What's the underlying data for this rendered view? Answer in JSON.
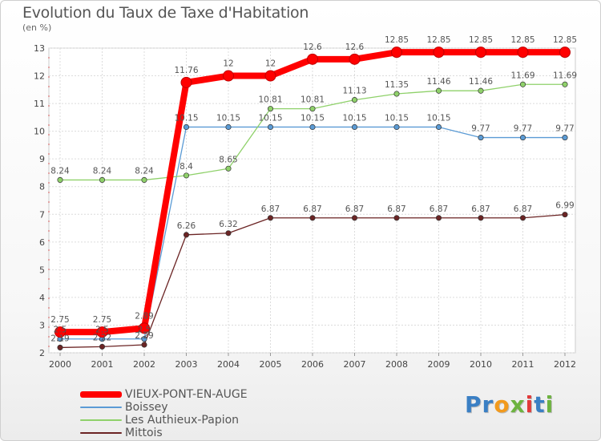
{
  "title": "Evolution du Taux de Taxe d'Habitation",
  "unit_label": "(en %)",
  "logo": {
    "text": "Proxiti",
    "letters": [
      {
        "ch": "P",
        "color": "#3a7fc4"
      },
      {
        "ch": "r",
        "color": "#3a7fc4"
      },
      {
        "ch": "o",
        "color": "#f29a1d"
      },
      {
        "ch": "x",
        "color": "#6db33f"
      },
      {
        "ch": "i",
        "color": "#e23a3a"
      },
      {
        "ch": "t",
        "color": "#3a7fc4"
      },
      {
        "ch": "i",
        "color": "#6db33f"
      }
    ]
  },
  "chart_data": {
    "type": "line",
    "title": "Evolution du Taux de Taxe d'Habitation",
    "ylabel": "(en %)",
    "xlabel": "",
    "x": [
      "2000",
      "2001",
      "2002",
      "2003",
      "2004",
      "2005",
      "2006",
      "2007",
      "2008",
      "2009",
      "2010",
      "2011",
      "2012"
    ],
    "ylim": [
      2,
      13
    ],
    "yticks": [
      2,
      3,
      4,
      5,
      6,
      7,
      8,
      9,
      10,
      11,
      12,
      13
    ],
    "grid": true,
    "legend_position": "bottom-left",
    "series": [
      {
        "name": "VIEUX-PONT-EN-AUGE",
        "color": "#ff0000",
        "emphasis": true,
        "values": [
          2.75,
          2.75,
          2.89,
          11.76,
          12,
          12,
          12.6,
          12.6,
          12.85,
          12.85,
          12.85,
          12.85,
          12.85
        ],
        "labels": [
          "2.75",
          "2.75",
          "2.89",
          "11.76",
          "12",
          "12",
          "12.6",
          "12.6",
          "12.85",
          "12.85",
          "12.85",
          "12.85",
          "12.85"
        ]
      },
      {
        "name": "Boissey",
        "color": "#5b9bd5",
        "emphasis": false,
        "values": [
          2.5,
          2.5,
          2.5,
          10.15,
          10.15,
          10.15,
          10.15,
          10.15,
          10.15,
          10.15,
          9.77,
          9.77,
          9.77
        ],
        "labels": [
          "2.5",
          "2.5",
          "2.5",
          "10.15",
          "10.15",
          "10.15",
          "10.15",
          "10.15",
          "10.15",
          "10.15",
          "9.77",
          "9.77",
          "9.77"
        ]
      },
      {
        "name": "Les Authieux-Papion",
        "color": "#8fd16a",
        "emphasis": false,
        "values": [
          8.24,
          8.24,
          8.24,
          8.4,
          8.65,
          10.81,
          10.81,
          11.13,
          11.35,
          11.46,
          11.46,
          11.69,
          11.69
        ],
        "labels": [
          "8.24",
          "8.24",
          "8.24",
          "8.4",
          "8.65",
          "10.81",
          "10.81",
          "11.13",
          "11.35",
          "11.46",
          "11.46",
          "11.69",
          "11.69"
        ]
      },
      {
        "name": "Mittois",
        "color": "#6b2424",
        "emphasis": false,
        "values": [
          2.19,
          2.22,
          2.29,
          6.26,
          6.32,
          6.87,
          6.87,
          6.87,
          6.87,
          6.87,
          6.87,
          6.87,
          6.99
        ],
        "labels": [
          "2.19",
          "2.22",
          "2.29",
          "6.26",
          "6.32",
          "6.87",
          "6.87",
          "6.87",
          "6.87",
          "6.87",
          "6.87",
          "6.87",
          "6.99"
        ]
      }
    ]
  }
}
